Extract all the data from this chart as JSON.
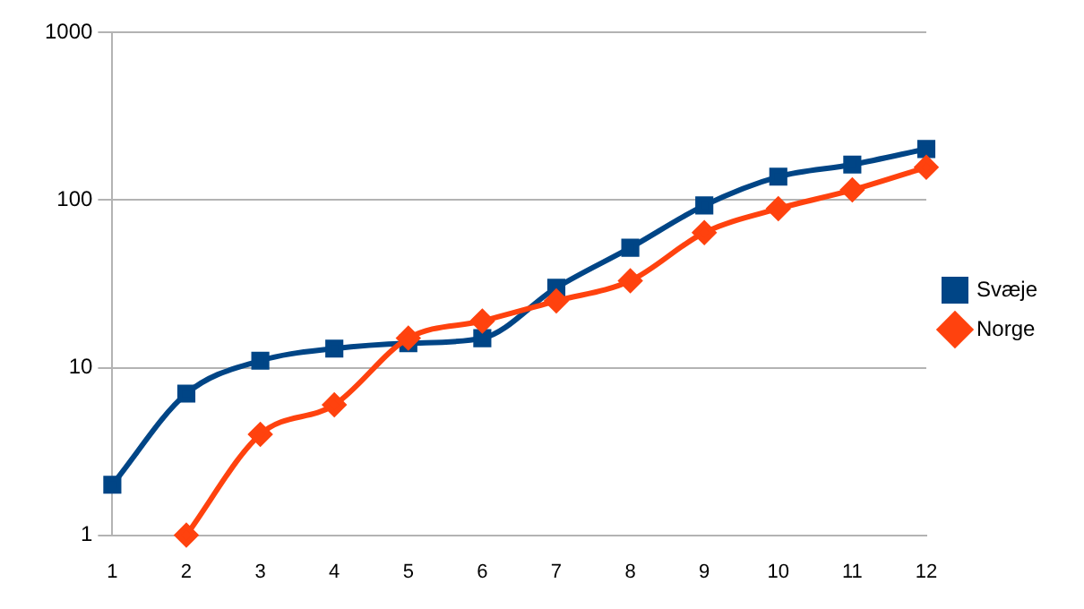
{
  "chart_data": {
    "type": "line",
    "x": [
      1,
      2,
      3,
      4,
      5,
      6,
      7,
      8,
      9,
      10,
      11,
      12
    ],
    "xlim": [
      1,
      12
    ],
    "xticks": [
      1,
      2,
      3,
      4,
      5,
      6,
      7,
      8,
      9,
      10,
      11,
      12
    ],
    "series": [
      {
        "name": "Svæje",
        "color": "#004586",
        "marker": "square",
        "values": [
          2,
          7,
          11,
          13,
          14,
          15,
          30,
          52,
          93,
          138,
          163,
          202
        ]
      },
      {
        "name": "Norge",
        "color": "#ff420e",
        "marker": "diamond",
        "values": [
          null,
          1,
          4,
          6,
          15,
          19,
          25,
          33,
          64,
          89,
          115,
          157
        ]
      }
    ],
    "log": "y",
    "ylim": [
      1,
      1000
    ],
    "yticks": [
      1,
      10,
      100,
      1000
    ],
    "grid": "y",
    "legend": "right",
    "line_style": "solid"
  }
}
